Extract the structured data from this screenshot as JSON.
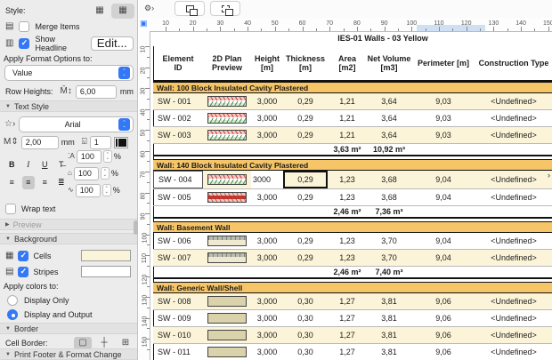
{
  "sidebar": {
    "style_label": "Style:",
    "merge_items_label": "Merge Items",
    "show_headline_label": "Show Headline",
    "edit_button": "Edit...",
    "apply_format_label": "Apply Format Options to:",
    "format_target_value": "Value",
    "row_heights_label": "Row Heights:",
    "row_height_value": "6,00",
    "row_height_unit": "mm",
    "text_style": {
      "header": "Text Style",
      "font_name": "Arial",
      "font_size": "2,00",
      "font_size_unit": "mm",
      "pen_value": "1",
      "scale_value": "100",
      "tracking_value": "100",
      "leading_value": "100",
      "percent": "%",
      "bold": "B",
      "italic": "I",
      "underline": "U",
      "strike": "T̶",
      "wrap_text_label": "Wrap text"
    },
    "preview_header": "Preview",
    "background_header": "Background",
    "cells_label": "Cells",
    "stripes_label": "Stripes",
    "cells_color": "#fbf4d8",
    "stripes_color": "#ffffff",
    "apply_colors_label": "Apply colors to:",
    "radio_display_only": "Display Only",
    "radio_display_output": "Display and Output",
    "border_header": "Border",
    "cell_border_label": "Cell Border:",
    "line_type_value": "Solid",
    "border_pen_value": "81",
    "footer_header": "Print Footer & Format Change"
  },
  "rulers": {
    "h_numbers": [
      10,
      20,
      30,
      40,
      50,
      60,
      70,
      80,
      90,
      100,
      110,
      120,
      130,
      140,
      150
    ],
    "v_numbers": [
      10,
      20,
      30,
      40,
      50,
      60,
      70,
      80,
      90,
      100,
      110,
      120,
      130,
      140,
      150
    ]
  },
  "table": {
    "title": "IES-01 Walls - 03 Yellow",
    "headers": [
      [
        "Element",
        "ID"
      ],
      [
        "2D Plan",
        "Preview"
      ],
      [
        "Height",
        "[m]"
      ],
      [
        "Thickness",
        "[m]"
      ],
      [
        "Area",
        "[m2]"
      ],
      [
        "Net Volume",
        "[m3]"
      ],
      [
        "Perimeter [m]"
      ],
      [
        "Construction Type"
      ]
    ],
    "colors": {
      "band": "#f6c567",
      "stripe": "#fbf4d8"
    },
    "groups": [
      {
        "band": "Wall: 100 Block Insulated Cavity Plastered",
        "rows": [
          {
            "id": "SW - 001",
            "pattern": "cavity",
            "height": "3,000",
            "thickness": "0,29",
            "area": "1,21",
            "net_volume": "3,64",
            "perimeter": "9,03",
            "type": "<Undefined>",
            "stripe": true
          },
          {
            "id": "SW - 002",
            "pattern": "cavity",
            "height": "3,000",
            "thickness": "0,29",
            "area": "1,21",
            "net_volume": "3,64",
            "perimeter": "9,03",
            "type": "<Undefined>",
            "stripe": false
          },
          {
            "id": "SW - 003",
            "pattern": "cavity",
            "height": "3,000",
            "thickness": "0,29",
            "area": "1,21",
            "net_volume": "3,64",
            "perimeter": "9,03",
            "type": "<Undefined>",
            "stripe": true
          }
        ],
        "subtotal": {
          "area": "3,63 m²",
          "net_volume": "10,92 m³"
        }
      },
      {
        "band": "Wall: 140 Block Insulated Cavity Plastered",
        "rows": [
          {
            "id": "SW - 004",
            "pattern": "cavity",
            "height": "3000",
            "thickness": "0,29",
            "area": "1,23",
            "net_volume": "3,68",
            "perimeter": "9,04",
            "type": "<Undefined>",
            "stripe": true,
            "editing": true
          },
          {
            "id": "SW - 005",
            "pattern": "cavity2",
            "height": "3,000",
            "thickness": "0,29",
            "area": "1,23",
            "net_volume": "3,68",
            "perimeter": "9,04",
            "type": "<Undefined>",
            "stripe": false
          }
        ],
        "subtotal": {
          "area": "2,46 m²",
          "net_volume": "7,36 m³"
        }
      },
      {
        "band": "Wall: Basement Wall",
        "rows": [
          {
            "id": "SW - 006",
            "pattern": "basement",
            "height": "3,000",
            "thickness": "0,29",
            "area": "1,23",
            "net_volume": "3,70",
            "perimeter": "9,04",
            "type": "<Undefined>",
            "stripe": false
          },
          {
            "id": "SW - 007",
            "pattern": "basement",
            "height": "3,000",
            "thickness": "0,29",
            "area": "1,23",
            "net_volume": "3,70",
            "perimeter": "9,04",
            "type": "<Undefined>",
            "stripe": true
          }
        ],
        "subtotal": {
          "area": "2,46 m²",
          "net_volume": "7,40 m³"
        }
      },
      {
        "band": "Wall: Generic Wall/Shell",
        "rows": [
          {
            "id": "SW - 008",
            "pattern": "generic",
            "height": "3,000",
            "thickness": "0,30",
            "area": "1,27",
            "net_volume": "3,81",
            "perimeter": "9,06",
            "type": "<Undefined>",
            "stripe": true
          },
          {
            "id": "SW - 009",
            "pattern": "generic",
            "height": "3,000",
            "thickness": "0,30",
            "area": "1,27",
            "net_volume": "3,81",
            "perimeter": "9,06",
            "type": "<Undefined>",
            "stripe": false
          },
          {
            "id": "SW - 010",
            "pattern": "generic",
            "height": "3,000",
            "thickness": "0,30",
            "area": "1,27",
            "net_volume": "3,81",
            "perimeter": "9,06",
            "type": "<Undefined>",
            "stripe": true
          },
          {
            "id": "SW - 011",
            "pattern": "generic",
            "height": "3,000",
            "thickness": "0,30",
            "area": "1,27",
            "net_volume": "3,81",
            "perimeter": "9,06",
            "type": "<Undefined>",
            "stripe": false
          }
        ],
        "subtotal": null
      }
    ]
  }
}
